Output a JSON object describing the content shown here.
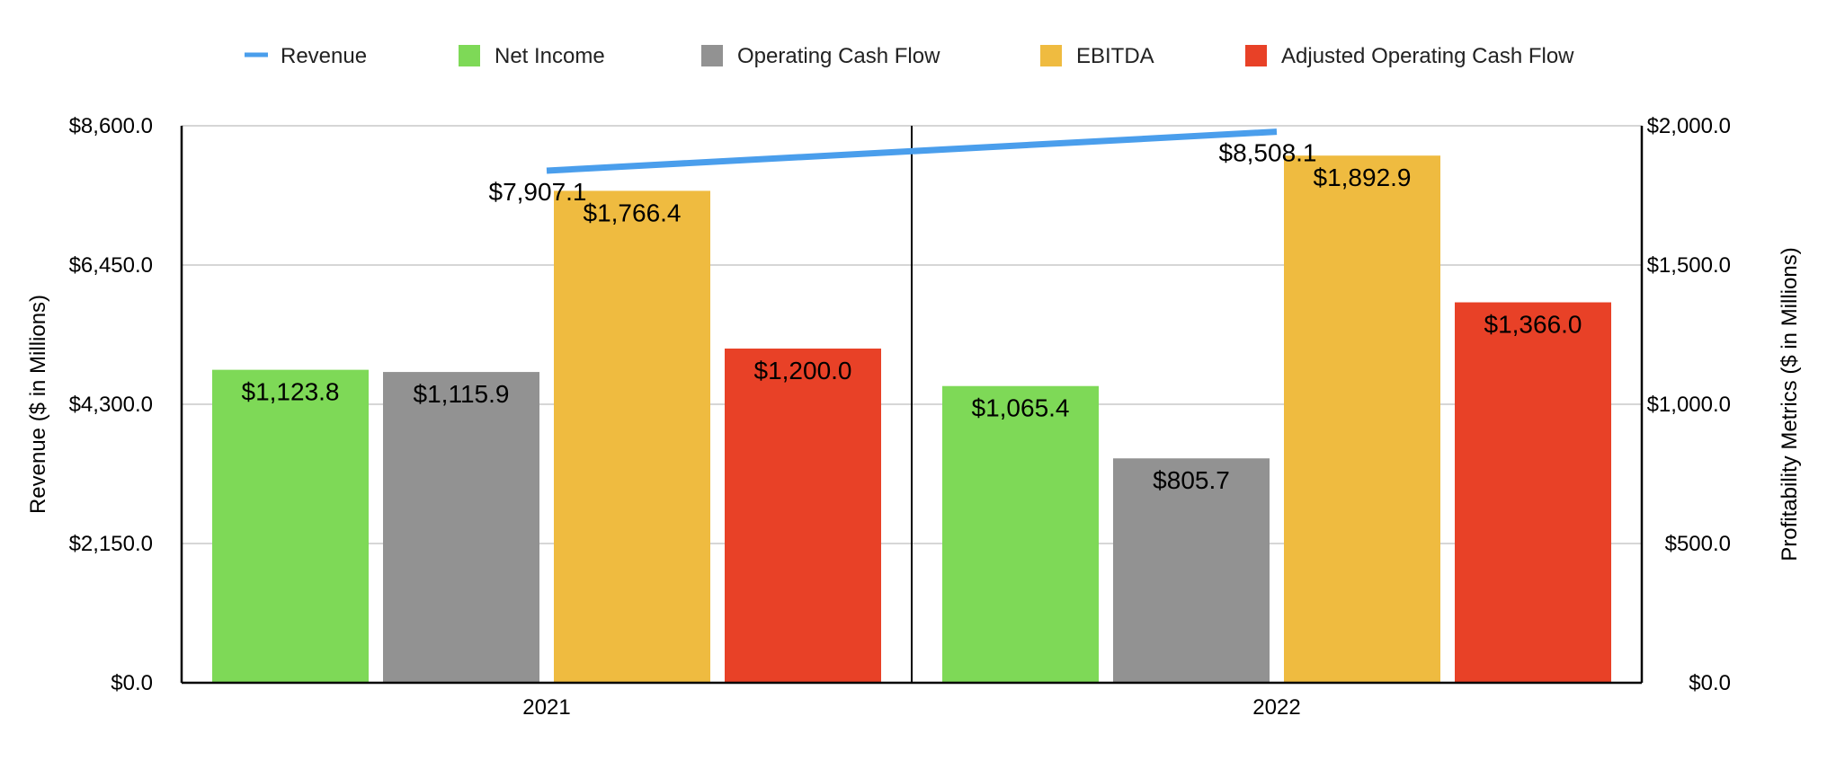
{
  "chart_data": {
    "type": "bar",
    "categories": [
      "2021",
      "2022"
    ],
    "series": [
      {
        "name": "Revenue",
        "kind": "line",
        "axis": "left",
        "color": "#4a9eec",
        "values": [
          7907.1,
          8508.1
        ],
        "labels": [
          "$7,907.1",
          "$8,508.1"
        ]
      },
      {
        "name": "Net Income",
        "kind": "bar",
        "axis": "right",
        "color": "#7ed957",
        "values": [
          1123.8,
          1065.4
        ],
        "labels": [
          "$1,123.8",
          "$1,065.4"
        ]
      },
      {
        "name": "Operating Cash Flow",
        "kind": "bar",
        "axis": "right",
        "color": "#929292",
        "values": [
          1115.9,
          805.7
        ],
        "labels": [
          "$1,115.9",
          "$805.7"
        ]
      },
      {
        "name": "EBITDA",
        "kind": "bar",
        "axis": "right",
        "color": "#efbb40",
        "values": [
          1766.4,
          1892.9
        ],
        "labels": [
          "$1,766.4",
          "$1,892.9"
        ]
      },
      {
        "name": "Adjusted Operating Cash Flow",
        "kind": "bar",
        "axis": "right",
        "color": "#e84127",
        "values": [
          1200.0,
          1366.0
        ],
        "labels": [
          "$1,200.0",
          "$1,366.0"
        ]
      }
    ],
    "y_left": {
      "label": "Revenue ($ in Millions)",
      "range": [
        0,
        8600
      ],
      "ticks": [
        0,
        2150,
        4300,
        6450,
        8600
      ],
      "tick_labels": [
        "$0.0",
        "$2,150.0",
        "$4,300.0",
        "$6,450.0",
        "$8,600.0"
      ]
    },
    "y_right": {
      "label": "Profitability Metrics ($ in Millions)",
      "range": [
        0,
        2000
      ],
      "ticks": [
        0,
        500,
        1000,
        1500,
        2000
      ],
      "tick_labels": [
        "$0.0",
        "$500.0",
        "$1,000.0",
        "$1,500.0",
        "$2,000.0"
      ]
    },
    "grid": true,
    "legend_position": "top"
  }
}
